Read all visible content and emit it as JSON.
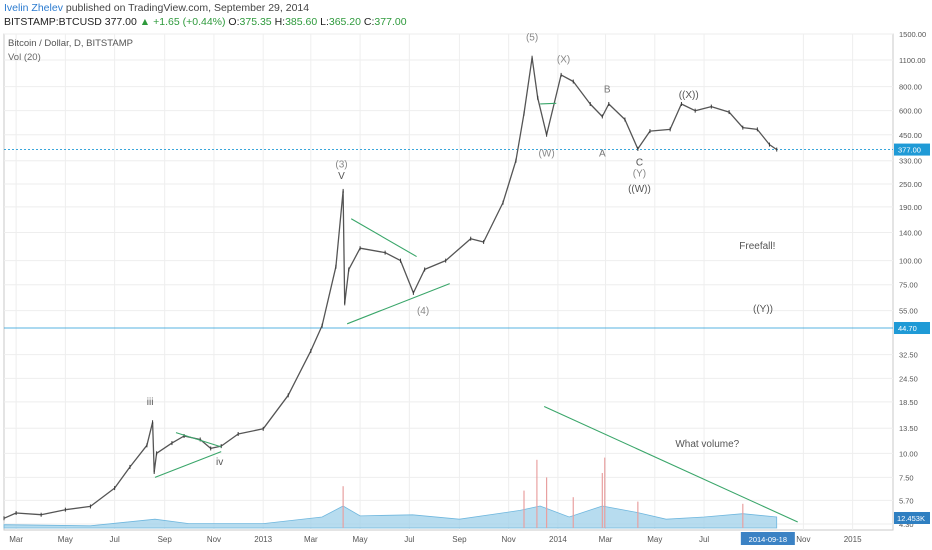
{
  "header": {
    "author": "Ivelin Zhelev",
    "published_text": "published on TradingView.com, September 29, 2014",
    "symbol": "BITSTAMP:BTCUSD",
    "last": "377.00",
    "change": "+1.65 (+0.44%)",
    "open_label": "O:",
    "open": "375.35",
    "high_label": "H:",
    "high": "385.60",
    "low_label": "L:",
    "low": "365.20",
    "close_label": "C:",
    "close": "377.00"
  },
  "chart_data": {
    "type": "line",
    "title": "Bitcoin / Dollar, D, BITSTAMP",
    "subtitle": "Vol (20)",
    "scale": "log",
    "ylim": [
      4.0,
      1500
    ],
    "xlim": [
      "2012-02-15",
      "2015-02-20"
    ],
    "x_ticks": [
      {
        "date": "2012-03-01",
        "label": "Mar"
      },
      {
        "date": "2012-05-01",
        "label": "May"
      },
      {
        "date": "2012-07-01",
        "label": "Jul"
      },
      {
        "date": "2012-09-01",
        "label": "Sep"
      },
      {
        "date": "2012-11-01",
        "label": "Nov"
      },
      {
        "date": "2013-01-01",
        "label": "2013"
      },
      {
        "date": "2013-03-01",
        "label": "Mar"
      },
      {
        "date": "2013-05-01",
        "label": "May"
      },
      {
        "date": "2013-07-01",
        "label": "Jul"
      },
      {
        "date": "2013-09-01",
        "label": "Sep"
      },
      {
        "date": "2013-11-01",
        "label": "Nov"
      },
      {
        "date": "2014-01-01",
        "label": "2014"
      },
      {
        "date": "2014-03-01",
        "label": "Mar"
      },
      {
        "date": "2014-05-01",
        "label": "May"
      },
      {
        "date": "2014-07-01",
        "label": "Jul"
      },
      {
        "date": "2014-11-01",
        "label": "Nov"
      },
      {
        "date": "2015-01-01",
        "label": "2015"
      }
    ],
    "y_ticks": [
      1500,
      1100,
      800,
      600,
      450,
      330,
      250,
      190,
      140,
      100,
      75,
      55,
      32.5,
      24.5,
      18.5,
      13.5,
      10,
      7.5,
      5.7,
      4.3
    ],
    "y_tick_labels": [
      "1500.00",
      "1100.00",
      "800.00",
      "600.00",
      "450.00",
      "330.00",
      "250.00",
      "190.00",
      "140.00",
      "100.00",
      "75.00",
      "55.00",
      "32.50",
      "24.50",
      "18.50",
      "13.50",
      "10.00",
      "7.50",
      "5.70",
      "4.30"
    ],
    "last_price": {
      "value": 377.0,
      "label": "377.00",
      "color": "#1f9ad6"
    },
    "support_line": {
      "value": 44.7,
      "label": "44.70",
      "color": "#1f9ad6"
    },
    "volume_last": {
      "label": "12.453K"
    },
    "date_badge": {
      "date": "2014-09-18",
      "label": "2014-09-18"
    },
    "price_series": [
      {
        "x": "2012-02-15",
        "y": 4.6
      },
      {
        "x": "2012-03-01",
        "y": 4.9
      },
      {
        "x": "2012-04-01",
        "y": 4.8
      },
      {
        "x": "2012-05-01",
        "y": 5.1
      },
      {
        "x": "2012-06-01",
        "y": 5.3
      },
      {
        "x": "2012-07-01",
        "y": 6.6
      },
      {
        "x": "2012-07-20",
        "y": 8.5
      },
      {
        "x": "2012-08-10",
        "y": 11.0
      },
      {
        "x": "2012-08-17",
        "y": 14.5
      },
      {
        "x": "2012-08-19",
        "y": 8.0
      },
      {
        "x": "2012-08-22",
        "y": 10.0
      },
      {
        "x": "2012-09-10",
        "y": 11.3
      },
      {
        "x": "2012-09-25",
        "y": 12.3
      },
      {
        "x": "2012-10-15",
        "y": 11.8
      },
      {
        "x": "2012-10-28",
        "y": 10.6
      },
      {
        "x": "2012-11-10",
        "y": 10.9
      },
      {
        "x": "2012-12-01",
        "y": 12.6
      },
      {
        "x": "2013-01-01",
        "y": 13.4
      },
      {
        "x": "2013-02-01",
        "y": 20.0
      },
      {
        "x": "2013-03-01",
        "y": 34.0
      },
      {
        "x": "2013-03-15",
        "y": 46.0
      },
      {
        "x": "2013-04-01",
        "y": 93.0
      },
      {
        "x": "2013-04-10",
        "y": 230.0
      },
      {
        "x": "2013-04-12",
        "y": 60.0
      },
      {
        "x": "2013-04-17",
        "y": 90.0
      },
      {
        "x": "2013-05-01",
        "y": 116.0
      },
      {
        "x": "2013-06-01",
        "y": 110.0
      },
      {
        "x": "2013-06-20",
        "y": 100.0
      },
      {
        "x": "2013-07-06",
        "y": 68.0
      },
      {
        "x": "2013-07-20",
        "y": 90.0
      },
      {
        "x": "2013-08-15",
        "y": 100.0
      },
      {
        "x": "2013-09-15",
        "y": 130.0
      },
      {
        "x": "2013-10-01",
        "y": 125.0
      },
      {
        "x": "2013-10-25",
        "y": 200.0
      },
      {
        "x": "2013-11-10",
        "y": 330.0
      },
      {
        "x": "2013-11-20",
        "y": 580.0
      },
      {
        "x": "2013-11-30",
        "y": 1130.0
      },
      {
        "x": "2013-12-07",
        "y": 700.0
      },
      {
        "x": "2013-12-18",
        "y": 450.0
      },
      {
        "x": "2014-01-05",
        "y": 920.0
      },
      {
        "x": "2014-01-20",
        "y": 850.0
      },
      {
        "x": "2014-02-10",
        "y": 650.0
      },
      {
        "x": "2014-02-25",
        "y": 560.0
      },
      {
        "x": "2014-03-05",
        "y": 650.0
      },
      {
        "x": "2014-03-25",
        "y": 540.0
      },
      {
        "x": "2014-04-10",
        "y": 380.0
      },
      {
        "x": "2014-04-25",
        "y": 470.0
      },
      {
        "x": "2014-05-20",
        "y": 480.0
      },
      {
        "x": "2014-06-03",
        "y": 650.0
      },
      {
        "x": "2014-06-20",
        "y": 600.0
      },
      {
        "x": "2014-07-10",
        "y": 630.0
      },
      {
        "x": "2014-08-01",
        "y": 590.0
      },
      {
        "x": "2014-08-18",
        "y": 490.0
      },
      {
        "x": "2014-09-05",
        "y": 480.0
      },
      {
        "x": "2014-09-20",
        "y": 400.0
      },
      {
        "x": "2014-09-29",
        "y": 377.0
      }
    ],
    "volume_profile_label": "volume area (low, relative)",
    "volume_series": [
      {
        "x": "2012-02-15",
        "v": 0.15
      },
      {
        "x": "2012-06-01",
        "v": 0.1
      },
      {
        "x": "2012-08-20",
        "v": 0.4
      },
      {
        "x": "2012-10-01",
        "v": 0.2
      },
      {
        "x": "2013-01-01",
        "v": 0.2
      },
      {
        "x": "2013-03-15",
        "v": 0.5
      },
      {
        "x": "2013-04-10",
        "v": 1.0
      },
      {
        "x": "2013-05-01",
        "v": 0.55
      },
      {
        "x": "2013-07-05",
        "v": 0.6
      },
      {
        "x": "2013-09-01",
        "v": 0.4
      },
      {
        "x": "2013-11-15",
        "v": 0.8
      },
      {
        "x": "2013-12-10",
        "v": 1.0
      },
      {
        "x": "2014-01-15",
        "v": 0.5
      },
      {
        "x": "2014-02-25",
        "v": 1.0
      },
      {
        "x": "2014-04-10",
        "v": 0.7
      },
      {
        "x": "2014-05-15",
        "v": 0.4
      },
      {
        "x": "2014-07-01",
        "v": 0.5
      },
      {
        "x": "2014-08-18",
        "v": 0.65
      },
      {
        "x": "2014-09-29",
        "v": 0.5
      }
    ],
    "volume_spikes": [
      {
        "x": "2013-04-10",
        "v": 1.9
      },
      {
        "x": "2013-11-20",
        "v": 1.7
      },
      {
        "x": "2013-12-06",
        "v": 3.1
      },
      {
        "x": "2013-12-18",
        "v": 2.3
      },
      {
        "x": "2014-02-25",
        "v": 2.5
      },
      {
        "x": "2014-02-28",
        "v": 3.2
      },
      {
        "x": "2014-01-20",
        "v": 1.4
      },
      {
        "x": "2014-04-10",
        "v": 1.2
      },
      {
        "x": "2014-08-18",
        "v": 1.1
      }
    ],
    "trendlines": [
      {
        "from": {
          "x": "2012-08-20",
          "y": 7.5
        },
        "to": {
          "x": "2012-11-10",
          "y": 10.2
        },
        "color": "#3aa66a"
      },
      {
        "from": {
          "x": "2012-09-15",
          "y": 12.8
        },
        "to": {
          "x": "2012-11-10",
          "y": 10.8
        },
        "color": "#3aa66a"
      },
      {
        "from": {
          "x": "2013-04-15",
          "y": 47.0
        },
        "to": {
          "x": "2013-08-20",
          "y": 76.0
        },
        "color": "#3aa66a"
      },
      {
        "from": {
          "x": "2013-04-20",
          "y": 165.0
        },
        "to": {
          "x": "2013-07-10",
          "y": 105.0
        },
        "color": "#3aa66a"
      },
      {
        "from": {
          "x": "2013-12-10",
          "y": 650.0
        },
        "to": {
          "x": "2013-12-30",
          "y": 655.0
        },
        "color": "#3aa66a"
      },
      {
        "from": {
          "x": "2013-12-15",
          "y": 17.5
        },
        "to": {
          "x": "2014-10-25",
          "y": 4.4
        },
        "color": "#3aa66a"
      }
    ],
    "annotations": [
      {
        "text": "iii",
        "x": "2012-08-14",
        "y": 17.8,
        "color": "#555555"
      },
      {
        "text": "iv",
        "x": "2012-11-08",
        "y": 8.7,
        "color": "#555555"
      },
      {
        "text": "(3)",
        "x": "2013-04-08",
        "y": 305,
        "color": "#888888"
      },
      {
        "text": "V",
        "x": "2013-04-08",
        "y": 265,
        "color": "#555555"
      },
      {
        "text": "(4)",
        "x": "2013-07-18",
        "y": 53,
        "color": "#888888"
      },
      {
        "text": "(5)",
        "x": "2013-11-30",
        "y": 1390,
        "color": "#888888"
      },
      {
        "text": "(X)",
        "x": "2014-01-08",
        "y": 1070,
        "color": "#888888"
      },
      {
        "text": "(W)",
        "x": "2013-12-18",
        "y": 347,
        "color": "#888888"
      },
      {
        "text": "B",
        "x": "2014-03-03",
        "y": 745,
        "color": "#777777"
      },
      {
        "text": "A",
        "x": "2014-02-25",
        "y": 347,
        "color": "#777777"
      },
      {
        "text": "C",
        "x": "2014-04-12",
        "y": 312,
        "color": "#555555"
      },
      {
        "text": "(Y)",
        "x": "2014-04-12",
        "y": 273,
        "color": "#888888"
      },
      {
        "text": "((W))",
        "x": "2014-04-12",
        "y": 227,
        "color": "#555555"
      },
      {
        "text": "((X))",
        "x": "2014-06-12",
        "y": 700,
        "color": "#555555"
      },
      {
        "text": "Freefall!",
        "x": "2014-09-05",
        "y": 115,
        "color": "#555555"
      },
      {
        "text": "((Y))",
        "x": "2014-09-12",
        "y": 54,
        "color": "#555555"
      },
      {
        "text": "What volume?",
        "x": "2014-07-05",
        "y": 10.8,
        "color": "#555555"
      }
    ]
  }
}
